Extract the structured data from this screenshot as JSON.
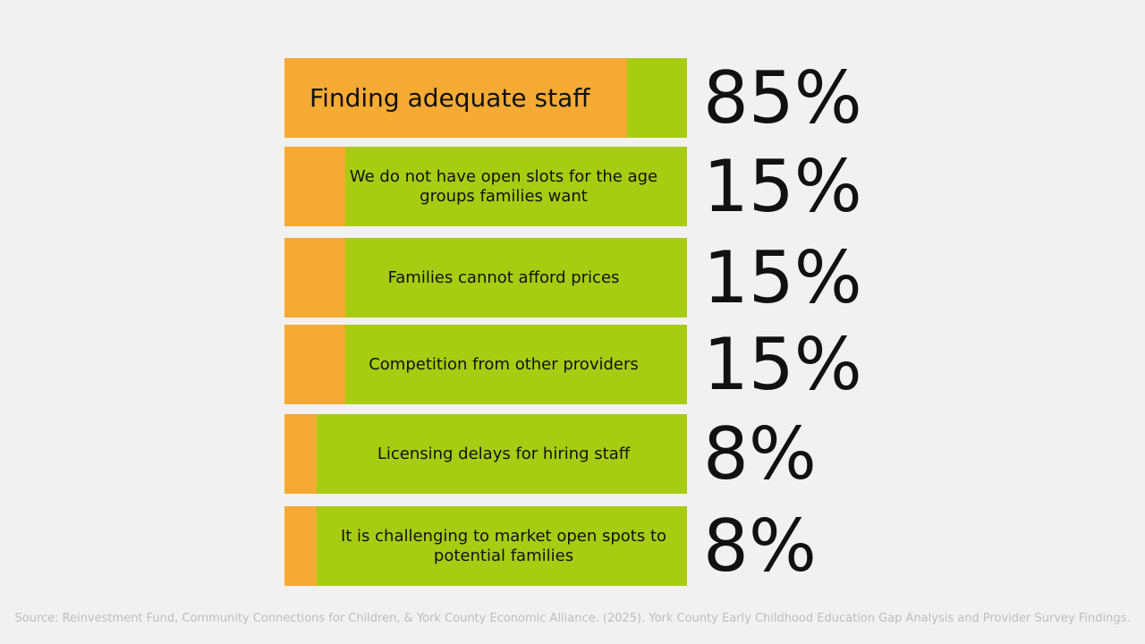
{
  "chart_data": {
    "type": "bar",
    "categories": [
      "Finding adequate staff",
      "We do not have open slots for the age groups families want",
      "Families cannot afford prices",
      "Competition from other providers",
      "Licensing delays for hiring staff",
      "It is challenging to market open spots to potential families"
    ],
    "values": [
      85,
      15,
      15,
      15,
      8,
      8
    ],
    "value_labels": [
      "85%",
      "15%",
      "15%",
      "15%",
      "8%",
      "8%"
    ],
    "xlim": [
      0,
      100
    ],
    "color": "#f5aa33",
    "track_color": "#a8cc12",
    "source": "Source: Reinvestment Fund, Community Connections for Children, & York County Economic Alliance. (2025). York County Early Childhood Education Gap Analysis and Provider Survey Findings."
  }
}
